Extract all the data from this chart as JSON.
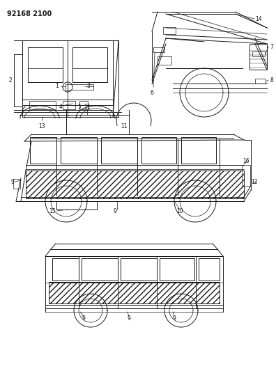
{
  "title_code": "92168 2100",
  "bg_color": "#ffffff",
  "line_color": "#1a1a1a",
  "fig_width": 3.96,
  "fig_height": 5.33,
  "dpi": 100
}
